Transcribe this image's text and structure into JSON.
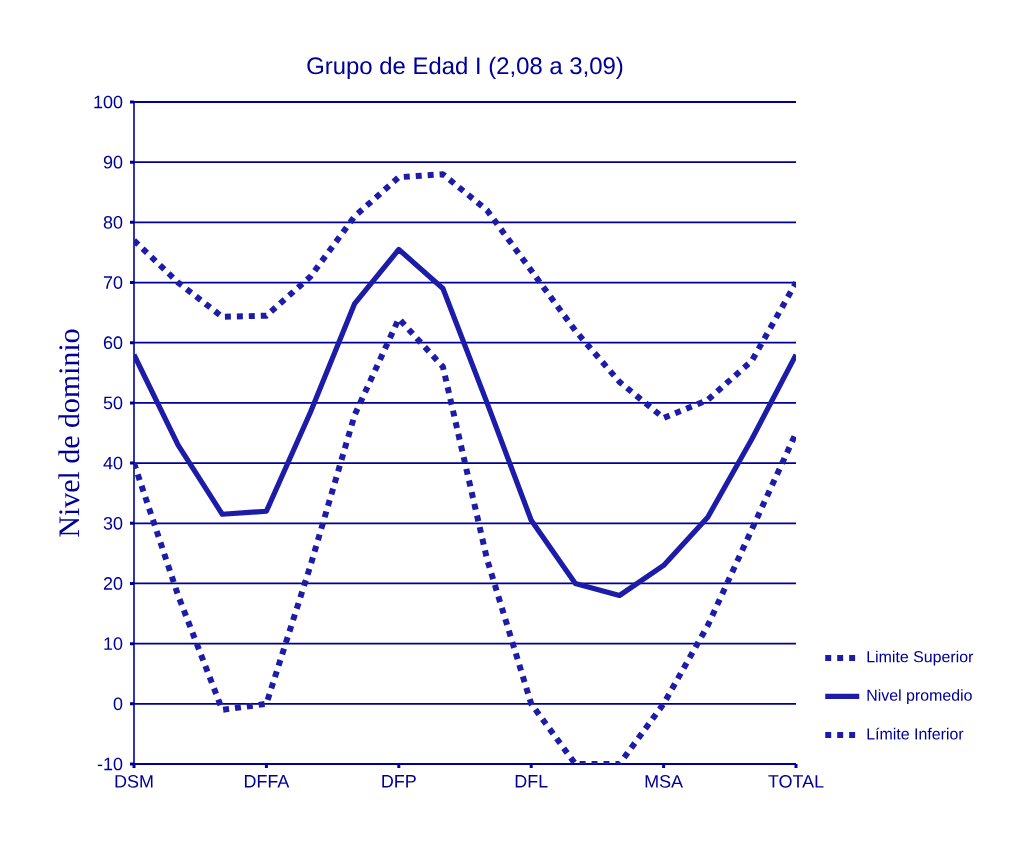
{
  "chart_data": {
    "type": "line",
    "title": "Grupo de Edad I (2,08 a 3,09)",
    "ylabel": "Nivel de dominio",
    "categories": [
      "DSM",
      null,
      null,
      "DFFA",
      null,
      null,
      "DFP",
      null,
      null,
      "DFL",
      null,
      null,
      "MSA",
      null,
      null,
      "TOTAL"
    ],
    "ylim": [
      -10,
      100
    ],
    "yticks": [
      -10,
      0,
      10,
      20,
      30,
      40,
      50,
      60,
      70,
      80,
      90,
      100
    ],
    "grid": "y",
    "legend": "right",
    "marker": "none",
    "series": [
      {
        "name": "Limite Superior",
        "color": "#1c1ca8",
        "line_style": "dotted",
        "values": [
          77,
          70,
          64.3,
          64.5,
          71,
          81,
          87.5,
          88,
          82,
          72,
          62,
          53.5,
          47.5,
          50.5,
          57,
          70
        ]
      },
      {
        "name": "Nivel promedio",
        "color": "#1c1ca8",
        "line_style": "solid",
        "values": [
          58,
          43,
          31.5,
          32,
          48.5,
          66.5,
          75.5,
          69,
          50,
          30.5,
          20,
          18,
          23,
          31,
          44,
          58
        ]
      },
      {
        "name": "Límite Inferior",
        "color": "#1c1ca8",
        "line_style": "dotted",
        "values": [
          40,
          18,
          -1,
          0,
          23,
          48,
          64,
          56,
          24,
          0,
          -10,
          -10,
          0,
          13,
          29,
          45
        ]
      }
    ]
  }
}
